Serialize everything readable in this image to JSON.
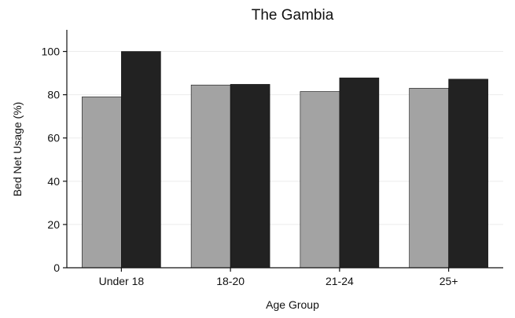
{
  "chart_data": {
    "type": "bar",
    "title": "The Gambia",
    "xlabel": "Age Group",
    "ylabel": "Bed Net Usage (%)",
    "categories": [
      "Under 18",
      "18-20",
      "21-24",
      "25+"
    ],
    "series": [
      {
        "values": [
          79,
          84.5,
          81.5,
          83
        ],
        "color": "#a3a3a3"
      },
      {
        "values": [
          100,
          84.8,
          87.8,
          87.2
        ],
        "color": "#222222"
      }
    ],
    "ylim": [
      0,
      110
    ],
    "yticks": [
      0,
      20,
      40,
      60,
      80,
      100
    ],
    "grid": true,
    "legend": "none"
  }
}
